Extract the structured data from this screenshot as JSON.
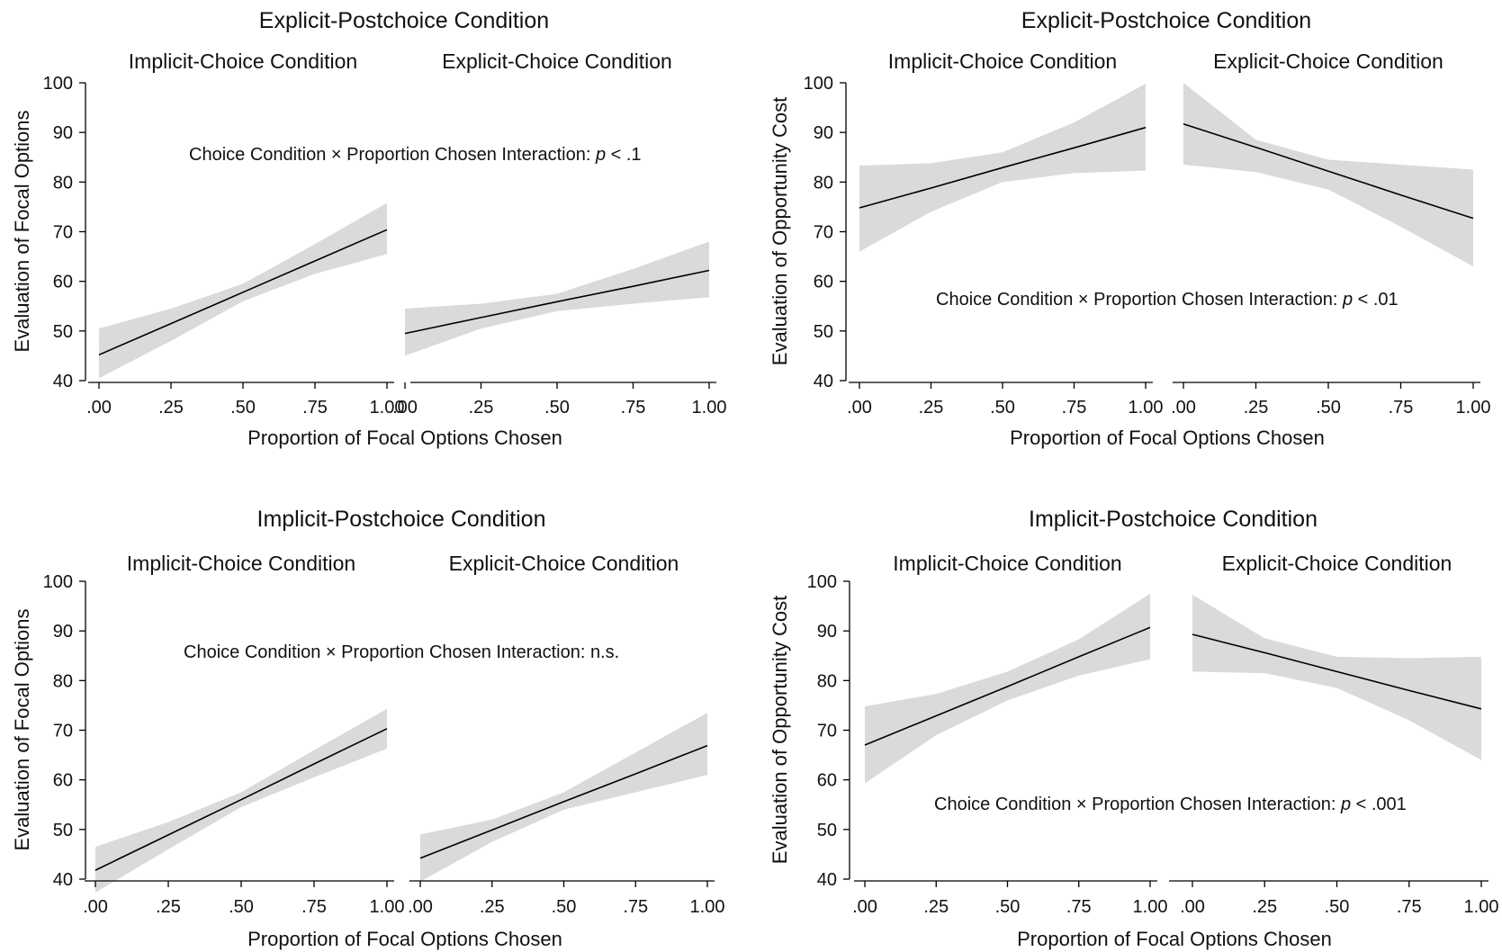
{
  "colors": {
    "band": "#d9dadb",
    "line": "#000000",
    "axis": "#000000",
    "text": "#111111"
  },
  "chart_data": [
    {
      "type": "line",
      "title": "Explicit-Postchoice Condition",
      "ylabel": "Evaluation of Focal Options",
      "xlabel": "Proportion of Focal Options Chosen",
      "annotation": {
        "prefix": "Choice Condition × Proportion Chosen Interaction: ",
        "stat": "p",
        "suffix": " < .1"
      },
      "ylim": [
        40,
        100
      ],
      "yticks": [
        40,
        50,
        60,
        70,
        80,
        90,
        100
      ],
      "xlim": [
        0,
        1
      ],
      "xtick_labels": [
        ".00",
        ".25",
        ".50",
        ".75",
        "1.00"
      ],
      "grid": false,
      "panels": [
        {
          "title": "Implicit-Choice Condition",
          "x": [
            0,
            0.25,
            0.5,
            0.75,
            1
          ],
          "y": [
            45.2,
            51.5,
            57.8,
            64.1,
            70.4
          ],
          "ci_upper": [
            50.5,
            54.5,
            59.5,
            67.5,
            75.8
          ],
          "ci_lower": [
            40.5,
            48.0,
            56.0,
            61.5,
            65.5
          ]
        },
        {
          "title": "Explicit-Choice Condition",
          "x": [
            0,
            0.25,
            0.5,
            0.75,
            1
          ],
          "y": [
            49.5,
            52.7,
            55.9,
            59.0,
            62.2
          ],
          "ci_upper": [
            54.5,
            55.5,
            57.5,
            62.5,
            68.0
          ],
          "ci_lower": [
            45.0,
            50.5,
            54.0,
            55.5,
            56.8
          ]
        }
      ]
    },
    {
      "type": "line",
      "title": "Explicit-Postchoice Condition",
      "ylabel": "Evaluation of Opportunity Cost",
      "xlabel": "Proportion of Focal Options Chosen",
      "annotation": {
        "prefix": "Choice Condition × Proportion Chosen Interaction: ",
        "stat": "p",
        "suffix": " < .01"
      },
      "ylim": [
        40,
        100
      ],
      "yticks": [
        40,
        50,
        60,
        70,
        80,
        90,
        100
      ],
      "xlim": [
        0,
        1
      ],
      "xtick_labels": [
        ".00",
        ".25",
        ".50",
        ".75",
        "1.00"
      ],
      "grid": false,
      "panels": [
        {
          "title": "Implicit-Choice Condition",
          "x": [
            0,
            0.25,
            0.5,
            0.75,
            1
          ],
          "y": [
            74.8,
            78.8,
            82.9,
            86.9,
            91.0
          ],
          "ci_upper": [
            83.3,
            83.8,
            86.0,
            92.0,
            99.8
          ],
          "ci_lower": [
            66.0,
            74.0,
            80.0,
            81.8,
            82.3
          ]
        },
        {
          "title": "Explicit-Choice Condition",
          "x": [
            0,
            0.25,
            0.5,
            0.75,
            1
          ],
          "y": [
            91.7,
            87.0,
            82.2,
            77.4,
            72.7
          ],
          "ci_upper": [
            100.0,
            88.5,
            84.5,
            83.5,
            82.5
          ],
          "ci_lower": [
            83.5,
            82.0,
            78.5,
            71.0,
            63.0
          ]
        }
      ]
    },
    {
      "type": "line",
      "title": "Implicit-Postchoice Condition",
      "ylabel": "Evaluation of Focal Options",
      "xlabel": "Proportion of Focal Options Chosen",
      "annotation": {
        "prefix": "Choice Condition × Proportion Chosen Interaction: ",
        "stat": "",
        "suffix": "n.s."
      },
      "ylim": [
        40,
        100
      ],
      "yticks": [
        40,
        50,
        60,
        70,
        80,
        90,
        100
      ],
      "xlim": [
        0,
        1
      ],
      "xtick_labels": [
        ".00",
        ".25",
        ".50",
        ".75",
        "1.00"
      ],
      "grid": false,
      "panels": [
        {
          "title": "Implicit-Choice Condition",
          "x": [
            0,
            0.25,
            0.5,
            0.75,
            1
          ],
          "y": [
            41.8,
            48.9,
            56.0,
            63.2,
            70.3
          ],
          "ci_upper": [
            46.5,
            51.5,
            57.5,
            66.0,
            74.3
          ],
          "ci_lower": [
            37.3,
            46.0,
            54.5,
            60.5,
            66.3
          ]
        },
        {
          "title": "Explicit-Choice Condition",
          "x": [
            0,
            0.25,
            0.5,
            0.75,
            1
          ],
          "y": [
            44.2,
            49.9,
            55.6,
            61.2,
            66.9
          ],
          "ci_upper": [
            49.0,
            52.0,
            57.5,
            65.5,
            73.5
          ],
          "ci_lower": [
            39.5,
            47.5,
            54.0,
            57.5,
            61.0
          ]
        }
      ]
    },
    {
      "type": "line",
      "title": "Implicit-Postchoice Condition",
      "ylabel": "Evaluation of Opportunity Cost",
      "xlabel": "Proportion of Focal Options Chosen",
      "annotation": {
        "prefix": "Choice Condition × Proportion Chosen Interaction: ",
        "stat": "p",
        "suffix": " < .001"
      },
      "ylim": [
        40,
        100
      ],
      "yticks": [
        40,
        50,
        60,
        70,
        80,
        90,
        100
      ],
      "xlim": [
        0,
        1
      ],
      "xtick_labels": [
        ".00",
        ".25",
        ".50",
        ".75",
        "1.00"
      ],
      "grid": false,
      "panels": [
        {
          "title": "Implicit-Choice Condition",
          "x": [
            0,
            0.25,
            0.5,
            0.75,
            1
          ],
          "y": [
            67.0,
            72.9,
            78.8,
            84.8,
            90.7
          ],
          "ci_upper": [
            74.8,
            77.3,
            81.8,
            88.3,
            97.5
          ],
          "ci_lower": [
            59.3,
            69.0,
            76.0,
            81.0,
            84.3
          ]
        },
        {
          "title": "Explicit-Choice Condition",
          "x": [
            0,
            0.25,
            0.5,
            0.75,
            1
          ],
          "y": [
            89.3,
            85.6,
            81.8,
            78.0,
            74.3
          ],
          "ci_upper": [
            97.3,
            88.5,
            84.8,
            84.5,
            84.8
          ],
          "ci_lower": [
            81.8,
            81.5,
            78.5,
            72.0,
            64.0
          ]
        }
      ]
    }
  ]
}
